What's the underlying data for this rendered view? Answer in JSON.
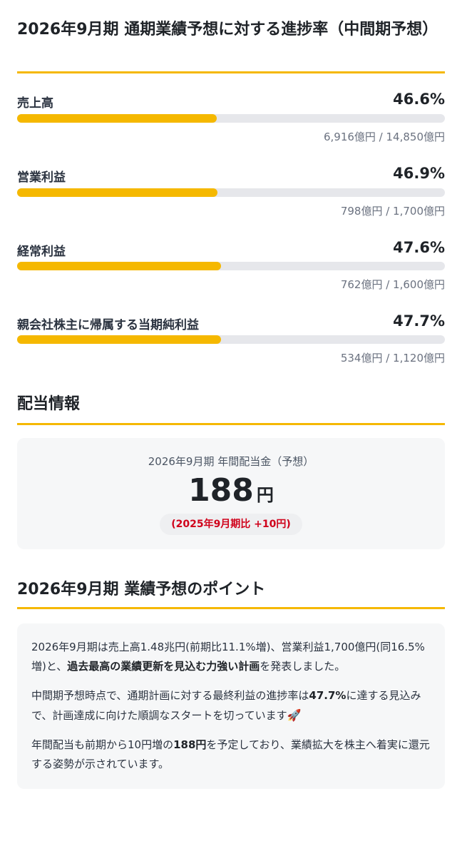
{
  "progress_section": {
    "title": "2026年9月期 通期業績予想に対する進捗率（中間期予想）",
    "metrics": [
      {
        "label": "売上高",
        "percent": "46.6%",
        "fill": 46.6,
        "detail": "6,916億円 / 14,850億円"
      },
      {
        "label": "営業利益",
        "percent": "46.9%",
        "fill": 46.9,
        "detail": "798億円 / 1,700億円"
      },
      {
        "label": "経常利益",
        "percent": "47.6%",
        "fill": 47.6,
        "detail": "762億円 / 1,600億円"
      },
      {
        "label": "親会社株主に帰属する当期純利益",
        "percent": "47.7%",
        "fill": 47.7,
        "detail": "534億円 / 1,120億円"
      }
    ]
  },
  "dividend_section": {
    "title": "配当情報",
    "caption": "2026年9月期 年間配当金（予想）",
    "amount": "188",
    "unit": "円",
    "change": "(2025年9月期比 +10円)"
  },
  "points_section": {
    "title": "2026年9月期 業績予想のポイント",
    "p1_a": "2026年9月期は売上高1.48兆円(前期比11.1%増)、営業利益1,700億円(同16.5%増)と、",
    "p1_b": "過去最高の業績更新を見込む力強い計画",
    "p1_c": "を発表しました。",
    "p2_a": "中間期予想時点で、通期計画に対する最終利益の進捗率は",
    "p2_b": "47.7%",
    "p2_c": "に達する見込みで、計画達成に向けた順調なスタートを切っています",
    "p2_icon": "🚀",
    "p3_a": "年間配当も前期から10円増の",
    "p3_b": "188円",
    "p3_c": "を予定しており、業績拡大を株主へ着実に還元する姿勢が示されています。"
  },
  "colors": {
    "accent": "#f5b800",
    "track": "#e6e7eb",
    "change_red": "#d0021b",
    "card_bg": "#f6f7f8"
  }
}
